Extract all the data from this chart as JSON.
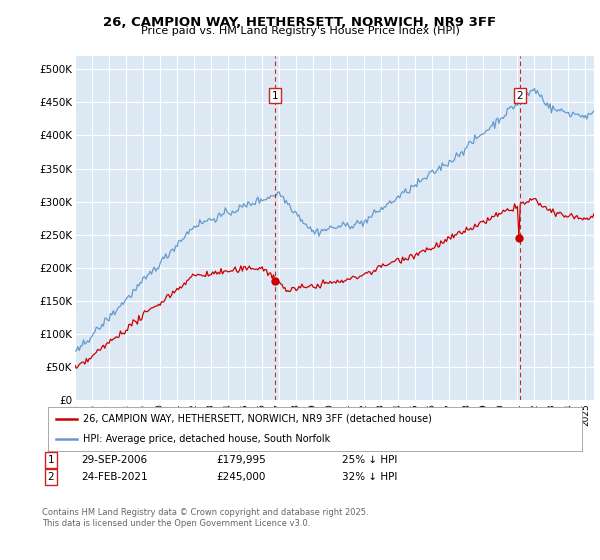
{
  "title": "26, CAMPION WAY, HETHERSETT, NORWICH, NR9 3FF",
  "subtitle": "Price paid vs. HM Land Registry's House Price Index (HPI)",
  "bg_color": "#dce9f5",
  "red_line_color": "#cc0000",
  "blue_line_color": "#6699cc",
  "dashed_color": "#cc2222",
  "ylim": [
    0,
    520000
  ],
  "yticks": [
    0,
    50000,
    100000,
    150000,
    200000,
    250000,
    300000,
    350000,
    400000,
    450000,
    500000
  ],
  "legend1": "26, CAMPION WAY, HETHERSETT, NORWICH, NR9 3FF (detached house)",
  "legend2": "HPI: Average price, detached house, South Norfolk",
  "annotation1_date": "29-SEP-2006",
  "annotation1_price": "£179,995",
  "annotation1_hpi": "25% ↓ HPI",
  "annotation2_date": "24-FEB-2021",
  "annotation2_price": "£245,000",
  "annotation2_hpi": "32% ↓ HPI",
  "footer": "Contains HM Land Registry data © Crown copyright and database right 2025.\nThis data is licensed under the Open Government Licence v3.0.",
  "sale1_year": 2006.75,
  "sale2_year": 2021.15,
  "sale1_price": 179995,
  "sale2_price": 245000
}
